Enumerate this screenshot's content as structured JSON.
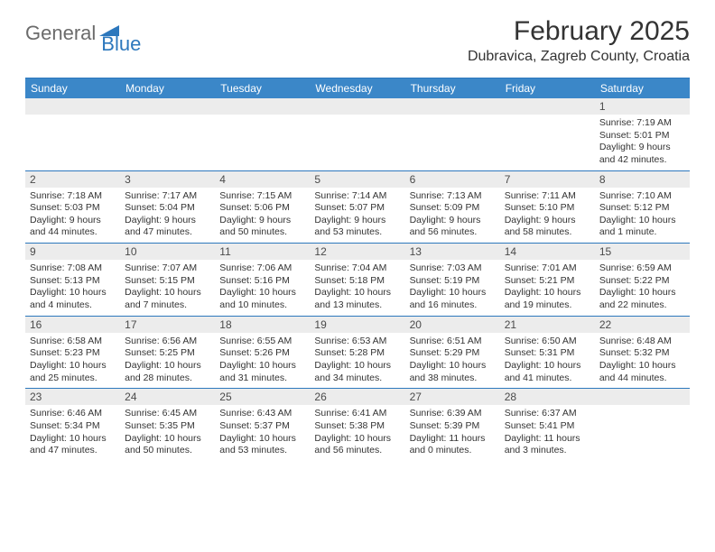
{
  "logo": {
    "general": "General",
    "blue": "Blue"
  },
  "title": "February 2025",
  "location": "Dubravica, Zagreb County, Croatia",
  "colors": {
    "accent": "#2d78bd",
    "header_bg": "#3b87c8",
    "daynum_bg": "#ececec",
    "text": "#333333",
    "logo_gray": "#6b6b6b"
  },
  "weekdays": [
    "Sunday",
    "Monday",
    "Tuesday",
    "Wednesday",
    "Thursday",
    "Friday",
    "Saturday"
  ],
  "weeks": [
    [
      null,
      null,
      null,
      null,
      null,
      null,
      {
        "n": "1",
        "sr": "7:19 AM",
        "ss": "5:01 PM",
        "dl": "9 hours and 42 minutes."
      }
    ],
    [
      {
        "n": "2",
        "sr": "7:18 AM",
        "ss": "5:03 PM",
        "dl": "9 hours and 44 minutes."
      },
      {
        "n": "3",
        "sr": "7:17 AM",
        "ss": "5:04 PM",
        "dl": "9 hours and 47 minutes."
      },
      {
        "n": "4",
        "sr": "7:15 AM",
        "ss": "5:06 PM",
        "dl": "9 hours and 50 minutes."
      },
      {
        "n": "5",
        "sr": "7:14 AM",
        "ss": "5:07 PM",
        "dl": "9 hours and 53 minutes."
      },
      {
        "n": "6",
        "sr": "7:13 AM",
        "ss": "5:09 PM",
        "dl": "9 hours and 56 minutes."
      },
      {
        "n": "7",
        "sr": "7:11 AM",
        "ss": "5:10 PM",
        "dl": "9 hours and 58 minutes."
      },
      {
        "n": "8",
        "sr": "7:10 AM",
        "ss": "5:12 PM",
        "dl": "10 hours and 1 minute."
      }
    ],
    [
      {
        "n": "9",
        "sr": "7:08 AM",
        "ss": "5:13 PM",
        "dl": "10 hours and 4 minutes."
      },
      {
        "n": "10",
        "sr": "7:07 AM",
        "ss": "5:15 PM",
        "dl": "10 hours and 7 minutes."
      },
      {
        "n": "11",
        "sr": "7:06 AM",
        "ss": "5:16 PM",
        "dl": "10 hours and 10 minutes."
      },
      {
        "n": "12",
        "sr": "7:04 AM",
        "ss": "5:18 PM",
        "dl": "10 hours and 13 minutes."
      },
      {
        "n": "13",
        "sr": "7:03 AM",
        "ss": "5:19 PM",
        "dl": "10 hours and 16 minutes."
      },
      {
        "n": "14",
        "sr": "7:01 AM",
        "ss": "5:21 PM",
        "dl": "10 hours and 19 minutes."
      },
      {
        "n": "15",
        "sr": "6:59 AM",
        "ss": "5:22 PM",
        "dl": "10 hours and 22 minutes."
      }
    ],
    [
      {
        "n": "16",
        "sr": "6:58 AM",
        "ss": "5:23 PM",
        "dl": "10 hours and 25 minutes."
      },
      {
        "n": "17",
        "sr": "6:56 AM",
        "ss": "5:25 PM",
        "dl": "10 hours and 28 minutes."
      },
      {
        "n": "18",
        "sr": "6:55 AM",
        "ss": "5:26 PM",
        "dl": "10 hours and 31 minutes."
      },
      {
        "n": "19",
        "sr": "6:53 AM",
        "ss": "5:28 PM",
        "dl": "10 hours and 34 minutes."
      },
      {
        "n": "20",
        "sr": "6:51 AM",
        "ss": "5:29 PM",
        "dl": "10 hours and 38 minutes."
      },
      {
        "n": "21",
        "sr": "6:50 AM",
        "ss": "5:31 PM",
        "dl": "10 hours and 41 minutes."
      },
      {
        "n": "22",
        "sr": "6:48 AM",
        "ss": "5:32 PM",
        "dl": "10 hours and 44 minutes."
      }
    ],
    [
      {
        "n": "23",
        "sr": "6:46 AM",
        "ss": "5:34 PM",
        "dl": "10 hours and 47 minutes."
      },
      {
        "n": "24",
        "sr": "6:45 AM",
        "ss": "5:35 PM",
        "dl": "10 hours and 50 minutes."
      },
      {
        "n": "25",
        "sr": "6:43 AM",
        "ss": "5:37 PM",
        "dl": "10 hours and 53 minutes."
      },
      {
        "n": "26",
        "sr": "6:41 AM",
        "ss": "5:38 PM",
        "dl": "10 hours and 56 minutes."
      },
      {
        "n": "27",
        "sr": "6:39 AM",
        "ss": "5:39 PM",
        "dl": "11 hours and 0 minutes."
      },
      {
        "n": "28",
        "sr": "6:37 AM",
        "ss": "5:41 PM",
        "dl": "11 hours and 3 minutes."
      },
      null
    ]
  ],
  "labels": {
    "sunrise": "Sunrise:",
    "sunset": "Sunset:",
    "daylight": "Daylight:"
  }
}
